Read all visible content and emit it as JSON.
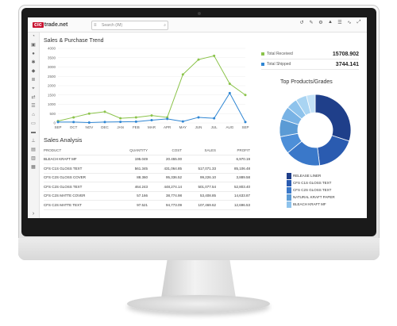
{
  "header": {
    "logo_left": "cic",
    "logo_right": "trade.net",
    "search_placeholder": "Search (/M)",
    "search_icon": "search-icon"
  },
  "toolbar": {
    "icons": [
      "history-icon",
      "edit-icon",
      "gear-icon",
      "bell-icon",
      "list-icon",
      "pulse-icon",
      "collapse-icon"
    ]
  },
  "sidebar": {
    "icons": [
      "dashboard-icon",
      "monitor-icon",
      "user-icon",
      "settings-icon",
      "box-icon",
      "layers-icon",
      "tag-icon",
      "exchange-icon",
      "list-icon",
      "bank-icon",
      "car-icon",
      "truck-icon",
      "forklift-icon",
      "bag-icon",
      "train-icon",
      "package-icon"
    ],
    "collapse_label": "›"
  },
  "trend": {
    "title": "Sales & Purchase Trend",
    "received_label": "Total Received",
    "received_value": "15708.902",
    "shipped_label": "Total Shipped",
    "shipped_value": "3744.141"
  },
  "chart_data": {
    "type": "line",
    "title": "Sales & Purchase Trend",
    "categories": [
      "SEP",
      "OCT",
      "NOV",
      "DEC",
      "JAN",
      "FEB",
      "MAR",
      "APR",
      "MAY",
      "JUN",
      "JUL",
      "AUG",
      "SEP"
    ],
    "ylim": [
      0,
      4000
    ],
    "yticks": [
      0,
      500,
      1000,
      1500,
      2000,
      2500,
      3000,
      3500,
      4000
    ],
    "series": [
      {
        "name": "Total Received",
        "color": "#8bc34a",
        "values": [
          100,
          300,
          500,
          600,
          250,
          300,
          400,
          300,
          2600,
          3400,
          3600,
          2100,
          1500
        ]
      },
      {
        "name": "Total Shipped",
        "color": "#2f86d3",
        "values": [
          50,
          50,
          20,
          50,
          60,
          70,
          150,
          220,
          80,
          300,
          250,
          1600,
          50
        ]
      }
    ]
  },
  "analysis": {
    "title": "Sales Analysis",
    "headers": [
      "PRODUCT",
      "QUANTITY",
      "COST",
      "SALES",
      "PROFIT"
    ],
    "rows": [
      [
        "BLEACH KRAFT MF",
        "195.049",
        "20.455.00",
        "",
        "6,970.19"
      ],
      [
        "CFS C1S GLOSS TEXT",
        "561.345",
        "431,064.85",
        "517,071.33",
        "85,106.48"
      ],
      [
        "CFS C2S GLOSS COVER",
        "88.360",
        "95,336.52",
        "99,226.10",
        "3,889.58"
      ],
      [
        "CFS C2S GLOSS TEXT",
        "464.243",
        "448,274.14",
        "501,077.54",
        "52,803.40"
      ],
      [
        "CFS C2S MATTE COVER",
        "57.166",
        "38,774.98",
        "53,408.85",
        "14,633.87"
      ],
      [
        "CFS C2S MATTE TEXT",
        "97.521",
        "94,773.09",
        "107,469.62",
        "12,696.53"
      ]
    ]
  },
  "products": {
    "title": "Top Products/Grades",
    "legend": [
      {
        "label": "RELEASE LINER",
        "color": "#1f3f8a"
      },
      {
        "label": "CFS C1S GLOSS TEXT",
        "color": "#2a5bb0"
      },
      {
        "label": "CFS C2S GLOSS TEXT",
        "color": "#3a78c9"
      },
      {
        "label": "NATURAL KRAFT PAPER",
        "color": "#5b9bd5"
      },
      {
        "label": "BLEACH KRAFT MF",
        "color": "#8ec3ec"
      }
    ],
    "slices": [
      {
        "value": 30,
        "color": "#1f3f8a"
      },
      {
        "value": 18,
        "color": "#2a5bb0"
      },
      {
        "value": 16,
        "color": "#3a78c9"
      },
      {
        "value": 8,
        "color": "#4d8fd8"
      },
      {
        "value": 8,
        "color": "#5b9bd5"
      },
      {
        "value": 6,
        "color": "#79b3e5"
      },
      {
        "value": 5,
        "color": "#8ec3ec"
      },
      {
        "value": 5,
        "color": "#a9d4f2"
      },
      {
        "value": 4,
        "color": "#c3e2f7"
      }
    ]
  }
}
